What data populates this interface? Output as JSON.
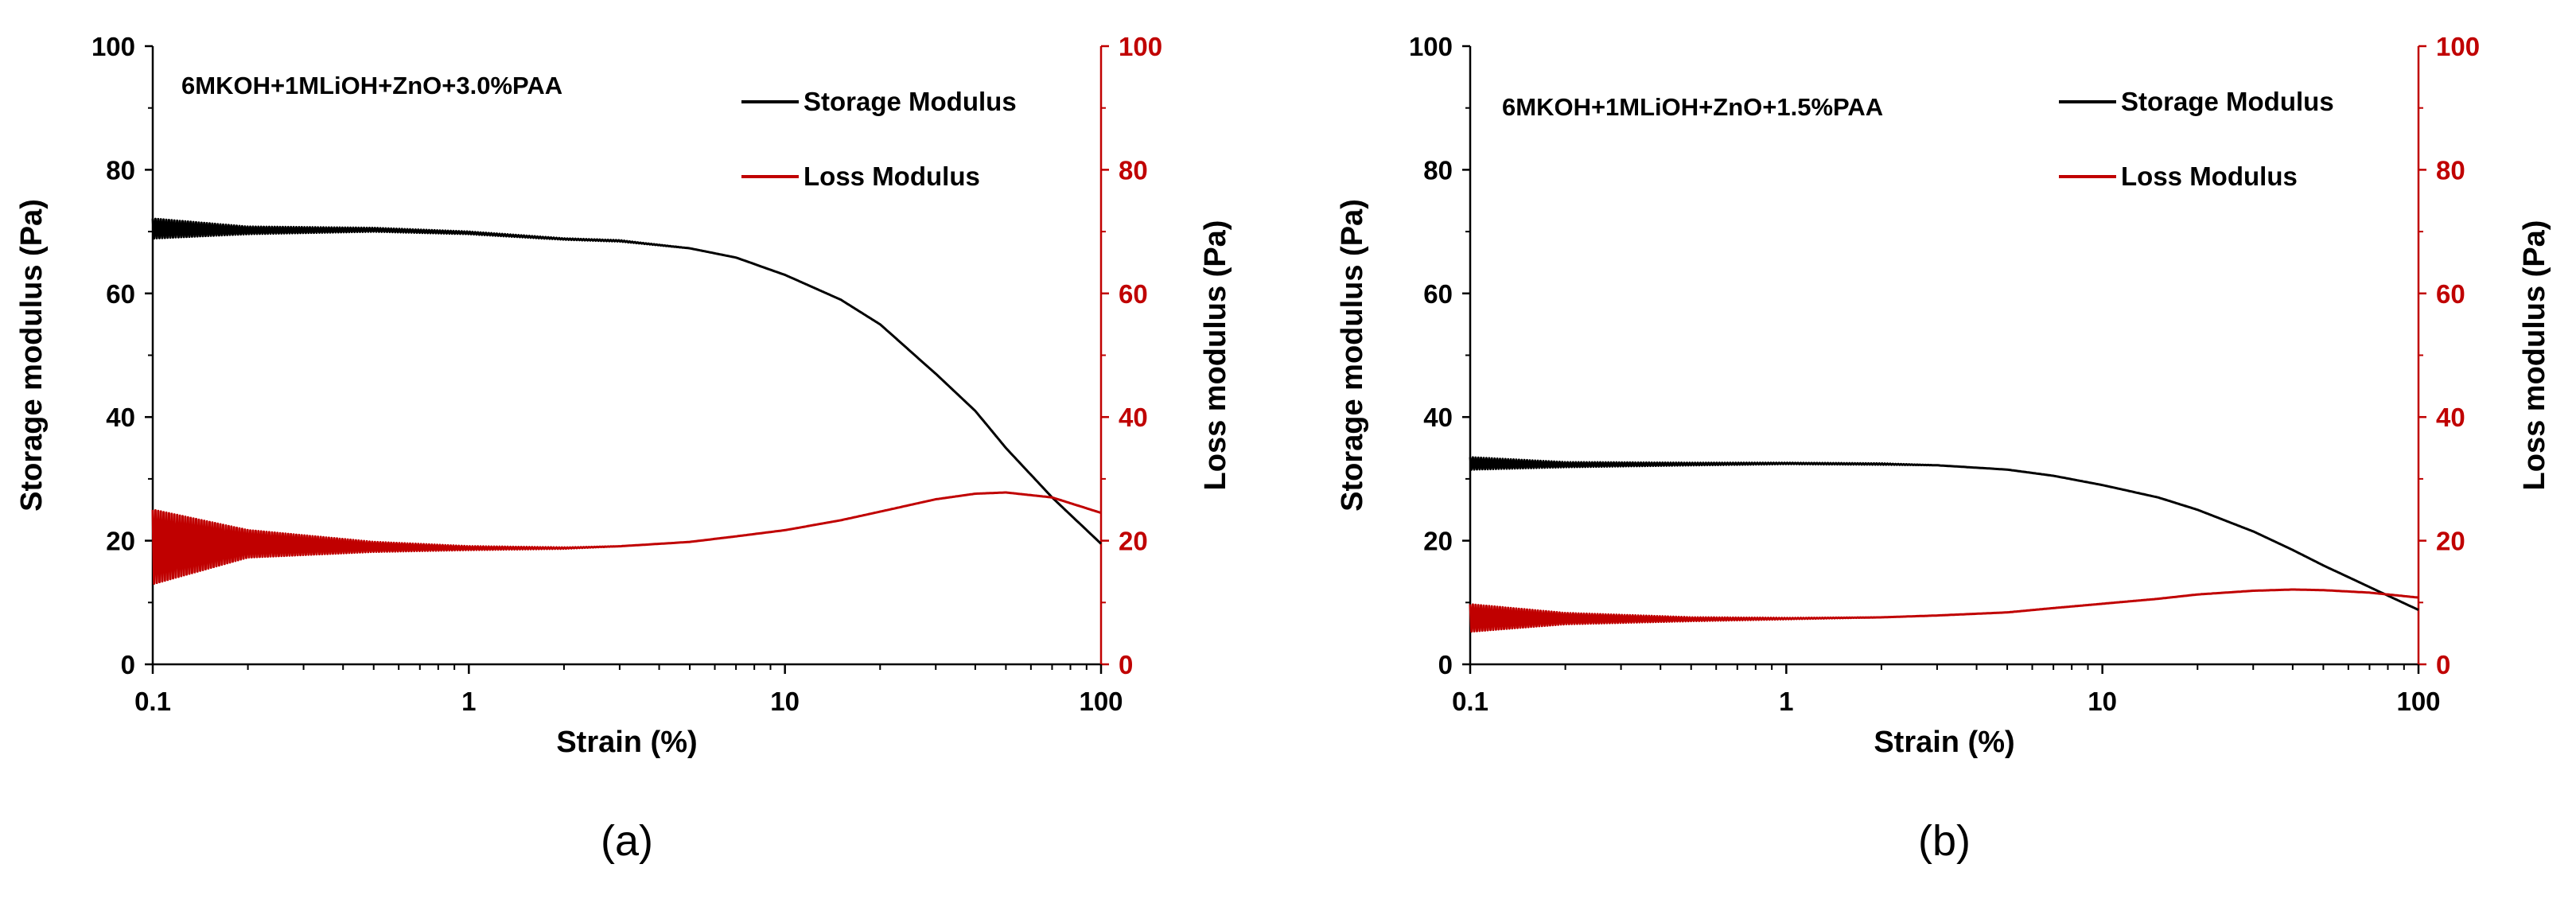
{
  "chart_data": [
    {
      "panel_label": "(a)",
      "type": "line",
      "annotation": "6MKOH+1MLiOH+ZnO+3.0%PAA",
      "xlabel": "Strain (%)",
      "ylabel": "Storage modulus (Pa)",
      "y2label": "Loss modulus (Pa)",
      "xscale": "log",
      "xlim": [
        0.1,
        100
      ],
      "ylim": [
        0,
        100
      ],
      "y2lim": [
        0,
        100
      ],
      "x_ticks": [
        "0.1",
        "1",
        "10",
        "100"
      ],
      "y_ticks": [
        "0",
        "20",
        "40",
        "60",
        "80",
        "100"
      ],
      "y2_ticks": [
        "0",
        "20",
        "40",
        "60",
        "80",
        "100"
      ],
      "legend_position": "top-right",
      "series": [
        {
          "name": "Storage Modulus",
          "axis": "left",
          "color": "#000000",
          "x": [
            0.1,
            0.2,
            0.5,
            1,
            2,
            3,
            5,
            7,
            10,
            15,
            20,
            30,
            40,
            50,
            70,
            100
          ],
          "values": [
            70.5,
            70.2,
            70.3,
            69.8,
            68.8,
            68.5,
            67.3,
            65.8,
            63,
            59,
            55,
            47,
            41,
            35,
            27,
            19.5
          ],
          "noise_amplitude": [
            1.6,
            0.6,
            0.3,
            0.2,
            0.1,
            0.1,
            0,
            0,
            0,
            0,
            0,
            0,
            0,
            0,
            0,
            0
          ]
        },
        {
          "name": "Loss Modulus",
          "axis": "right",
          "color": "#c00000",
          "x": [
            0.1,
            0.2,
            0.5,
            1,
            2,
            3,
            5,
            7,
            10,
            15,
            20,
            30,
            40,
            50,
            70,
            100
          ],
          "values": [
            19,
            19.5,
            19,
            18.8,
            18.8,
            19.1,
            19.8,
            20.7,
            21.7,
            23.3,
            24.7,
            26.7,
            27.6,
            27.8,
            27,
            24.5
          ],
          "noise_amplitude": [
            6,
            2.2,
            0.8,
            0.3,
            0.1,
            0,
            0,
            0,
            0,
            0,
            0,
            0,
            0,
            0,
            0,
            0
          ]
        }
      ]
    },
    {
      "panel_label": "(b)",
      "type": "line",
      "annotation": "6MKOH+1MLiOH+ZnO+1.5%PAA",
      "xlabel": "Strain (%)",
      "ylabel": "Storage modulus (Pa)",
      "y2label": "Loss modulus (Pa)",
      "xscale": "log",
      "xlim": [
        0.1,
        100
      ],
      "ylim": [
        0,
        100
      ],
      "y2lim": [
        0,
        100
      ],
      "x_ticks": [
        "0.1",
        "1",
        "10",
        "100"
      ],
      "y_ticks": [
        "0",
        "20",
        "40",
        "60",
        "80",
        "100"
      ],
      "y2_ticks": [
        "0",
        "20",
        "40",
        "60",
        "80",
        "100"
      ],
      "legend_position": "top-right",
      "series": [
        {
          "name": "Storage Modulus",
          "axis": "left",
          "color": "#000000",
          "x": [
            0.1,
            0.2,
            0.5,
            1,
            2,
            3,
            5,
            7,
            10,
            15,
            20,
            30,
            40,
            50,
            70,
            100
          ],
          "values": [
            32.5,
            32.3,
            32.4,
            32.5,
            32.4,
            32.2,
            31.5,
            30.5,
            29,
            27,
            25,
            21.5,
            18.5,
            16,
            12.5,
            8.8
          ],
          "noise_amplitude": [
            1,
            0.4,
            0.2,
            0.1,
            0.1,
            0,
            0,
            0,
            0,
            0,
            0,
            0,
            0,
            0,
            0,
            0
          ]
        },
        {
          "name": "Loss Modulus",
          "axis": "right",
          "color": "#c00000",
          "x": [
            0.1,
            0.2,
            0.5,
            1,
            2,
            3,
            5,
            7,
            10,
            15,
            20,
            30,
            40,
            50,
            70,
            100
          ],
          "values": [
            7.5,
            7.4,
            7.3,
            7.4,
            7.6,
            7.9,
            8.4,
            9.1,
            9.8,
            10.6,
            11.3,
            11.9,
            12.1,
            12,
            11.6,
            10.8
          ],
          "noise_amplitude": [
            2.2,
            0.9,
            0.3,
            0.1,
            0,
            0,
            0,
            0,
            0,
            0,
            0,
            0,
            0,
            0,
            0,
            0
          ]
        }
      ]
    }
  ]
}
